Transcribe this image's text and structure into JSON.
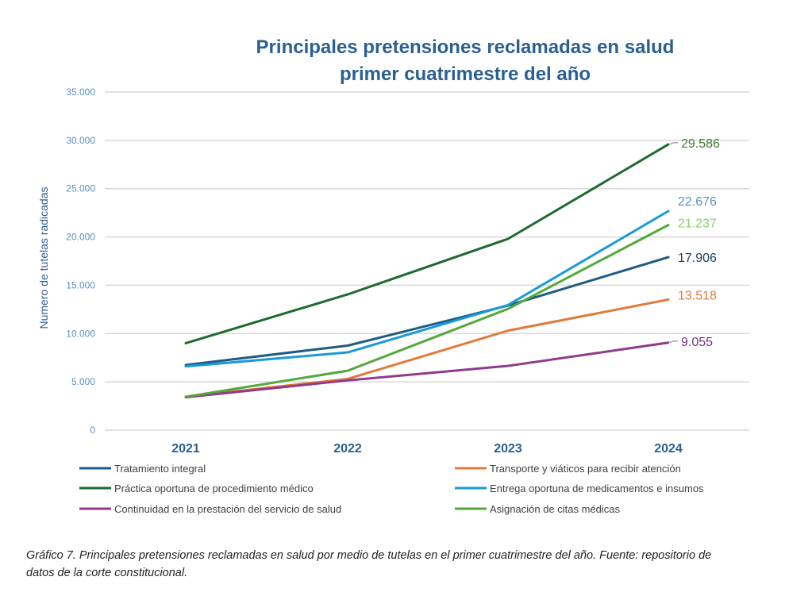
{
  "chart_data": {
    "type": "line",
    "title": "Principales pretensiones reclamadas en salud",
    "subtitle": "primer cuatrimestre del año",
    "xlabel": "",
    "ylabel": "Numero de tutelas radicadas",
    "categories": [
      "2021",
      "2022",
      "2023",
      "2024"
    ],
    "ylim": [
      0,
      35000
    ],
    "yticks": [
      0,
      5000,
      10000,
      15000,
      20000,
      25000,
      30000,
      35000
    ],
    "ytick_labels": [
      "0",
      "5.000",
      "10.000",
      "15.000",
      "20.000",
      "25.000",
      "30.000",
      "35.000"
    ],
    "grid": true,
    "legend_position": "bottom",
    "series": [
      {
        "name": "Tratamiento integral",
        "color": "#1f5b82",
        "label_color": "#1f3b5c",
        "values": [
          6750,
          8750,
          12900,
          17906
        ],
        "end_label": "17.906"
      },
      {
        "name": "Transporte y viáticos para recibir atención",
        "color": "#e07b3c",
        "label_color": "#e07b3c",
        "values": [
          3450,
          5300,
          10300,
          13518
        ],
        "end_label": "13.518"
      },
      {
        "name": "Práctica oportuna de procedimiento médico",
        "color": "#1e6a2d",
        "label_color": "#3e7a2e",
        "values": [
          9000,
          14050,
          19800,
          29586
        ],
        "end_label": "29.586"
      },
      {
        "name": "Entrega oportuna de medicamentos e insumos",
        "color": "#1a9ad6",
        "label_color": "#5b8fc7",
        "values": [
          6600,
          8050,
          12950,
          22676
        ],
        "end_label": "22.676"
      },
      {
        "name": "Continuidad en la prestación del servicio de salud",
        "color": "#8e3a8e",
        "label_color": "#7a2f7a",
        "values": [
          3400,
          5150,
          6650,
          9055
        ],
        "end_label": "9.055"
      },
      {
        "name": "Asignación de citas médicas",
        "color": "#55a83a",
        "label_color": "#8ccf6a",
        "values": [
          3450,
          6150,
          12550,
          21237
        ],
        "end_label": "21.237"
      }
    ]
  },
  "caption": "Gráfico 7.  Principales pretensiones reclamadas en salud por medio de tutelas en el primer cuatrimestre del año.  Fuente: repositorio de datos de la corte constitucional."
}
